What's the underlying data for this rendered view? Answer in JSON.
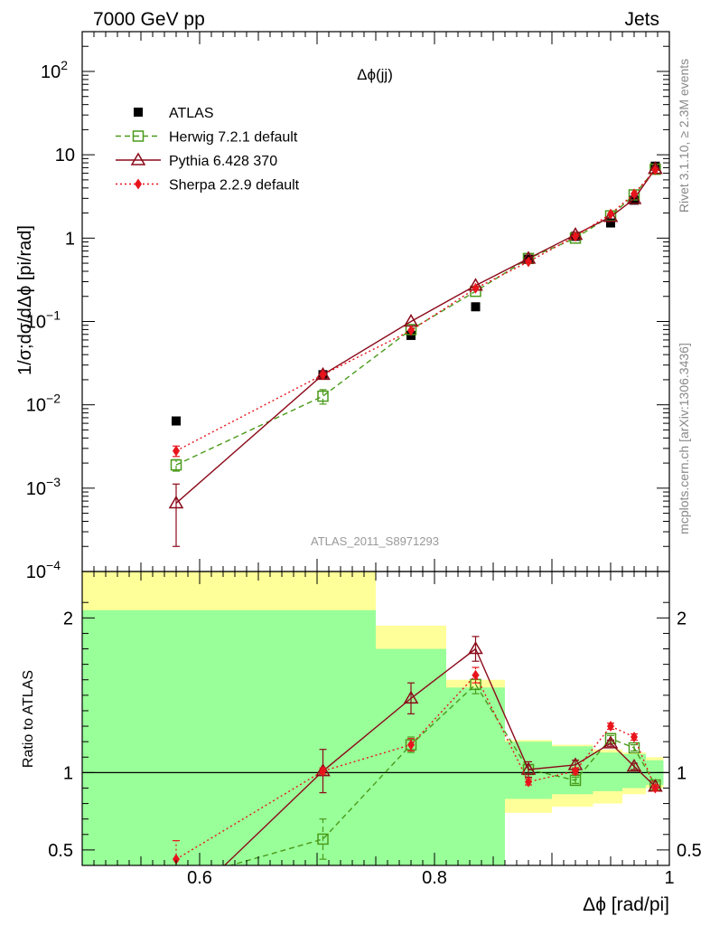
{
  "header": {
    "left": "7000 GeV pp",
    "right": "Jets"
  },
  "side_labels": {
    "rivet": "Rivet 3.1.10, ≥ 2.3M events",
    "source": "mcplots.cern.ch [arXiv:1306.3436]"
  },
  "chart_data": [
    {
      "type": "line",
      "panel": "main",
      "title": "Δϕ(jj)",
      "ylabel": "1/σ;dσ/dΔϕ [pi/rad]",
      "yscale": "log",
      "ylim": [
        0.0001,
        300
      ],
      "xlim": [
        0.5,
        1.0
      ],
      "analysis_tag": "ATLAS_2011_S8971293",
      "legend_position": "top-left",
      "series": [
        {
          "name": "ATLAS",
          "style": "data",
          "color": "#000000",
          "x": [
            0.58,
            0.705,
            0.78,
            0.835,
            0.88,
            0.92,
            0.95,
            0.97,
            0.988
          ],
          "y": [
            0.0064,
            0.023,
            0.068,
            0.15,
            0.56,
            1.05,
            1.52,
            2.85,
            7.3
          ]
        },
        {
          "name": "Herwig 7.2.1 default",
          "style": "dashed",
          "color": "#4a9a1a",
          "x": [
            0.58,
            0.705,
            0.78,
            0.835,
            0.88,
            0.92,
            0.95,
            0.97,
            0.988
          ],
          "y": [
            0.0019,
            0.0127,
            0.08,
            0.23,
            0.57,
            1.0,
            1.85,
            3.3,
            6.7
          ],
          "yerr": [
            0.0003,
            0.0025,
            0,
            0,
            0,
            0,
            0,
            0,
            0
          ]
        },
        {
          "name": "Pythia 6.428 370",
          "style": "solid",
          "color": "#8b0a1a",
          "x": [
            0.58,
            0.705,
            0.78,
            0.835,
            0.88,
            0.92,
            0.95,
            0.97,
            0.988
          ],
          "y": [
            0.00066,
            0.023,
            0.1,
            0.27,
            0.57,
            1.1,
            1.8,
            2.95,
            6.8
          ],
          "yerr": [
            0.00046,
            0.002,
            0,
            0,
            0,
            0,
            0,
            0,
            0
          ]
        },
        {
          "name": "Sherpa 2.2.9 default",
          "style": "dotted",
          "color": "#e8141c",
          "x": [
            0.58,
            0.705,
            0.78,
            0.835,
            0.88,
            0.92,
            0.95,
            0.97,
            0.988
          ],
          "y": [
            0.0028,
            0.023,
            0.078,
            0.25,
            0.52,
            1.05,
            1.95,
            3.4,
            6.6
          ],
          "yerr": [
            0.0004,
            0,
            0,
            0,
            0,
            0,
            0,
            0,
            0
          ]
        }
      ]
    },
    {
      "type": "line",
      "panel": "ratio",
      "ylabel": "Ratio to ATLAS",
      "xlabel": "Δϕ [rad/pi]",
      "xlim": [
        0.5,
        1.0
      ],
      "ylim": [
        0.4,
        2.3
      ],
      "yticks": [
        0.5,
        1,
        2
      ],
      "xticks": [
        0.6,
        0.8,
        1
      ],
      "bands": {
        "bin_edges": [
          0.5,
          0.66,
          0.75,
          0.81,
          0.86,
          0.9,
          0.935,
          0.96,
          0.98,
          0.995
        ],
        "inner_lo": [
          0.0,
          0.0,
          0.0,
          0.0,
          0.83,
          0.86,
          0.88,
          0.9,
          0.92
        ],
        "inner_hi": [
          2.05,
          2.05,
          1.8,
          1.55,
          1.2,
          1.17,
          1.13,
          1.12,
          1.08
        ],
        "outer_lo": [
          0.0,
          0.0,
          0.4,
          0.66,
          0.74,
          0.78,
          0.8,
          0.86,
          0.9
        ],
        "outer_hi": [
          2.3,
          2.3,
          1.95,
          1.6,
          1.21,
          1.18,
          1.15,
          1.13,
          1.1
        ],
        "inner_color": "#99ff99",
        "outer_color": "#ffff99"
      },
      "series": [
        {
          "name": "Herwig 7.2.1 default",
          "style": "dashed",
          "color": "#4a9a1a",
          "x": [
            0.58,
            0.705,
            0.78,
            0.835,
            0.88,
            0.92,
            0.95,
            0.97,
            0.988
          ],
          "y": [
            0.3,
            0.57,
            1.18,
            1.57,
            1.02,
            0.95,
            1.22,
            1.16,
            0.92
          ],
          "yerr": [
            0.04,
            0.13,
            0.05,
            0.06,
            0.03,
            0.02,
            0.02,
            0.02,
            0.02
          ]
        },
        {
          "name": "Pythia 6.428 370",
          "style": "solid",
          "color": "#8b0a1a",
          "x": [
            0.58,
            0.705,
            0.78,
            0.835,
            0.88,
            0.92,
            0.95,
            0.97,
            0.988
          ],
          "y": [
            0.1,
            1.01,
            1.48,
            1.8,
            1.02,
            1.05,
            1.19,
            1.04,
            0.91
          ],
          "yerr": [
            0.07,
            0.14,
            0.1,
            0.08,
            0.05,
            0.03,
            0.02,
            0.02,
            0.01
          ]
        },
        {
          "name": "Sherpa 2.2.9 default",
          "style": "dotted",
          "color": "#e8141c",
          "x": [
            0.58,
            0.705,
            0.78,
            0.835,
            0.88,
            0.92,
            0.95,
            0.97,
            0.988
          ],
          "y": [
            0.44,
            1.01,
            1.18,
            1.63,
            0.94,
            1.01,
            1.3,
            1.23,
            0.9
          ],
          "yerr": [
            0.12,
            0.02,
            0.04,
            0.05,
            0.02,
            0.02,
            0.02,
            0.02,
            0.02
          ]
        }
      ]
    }
  ]
}
